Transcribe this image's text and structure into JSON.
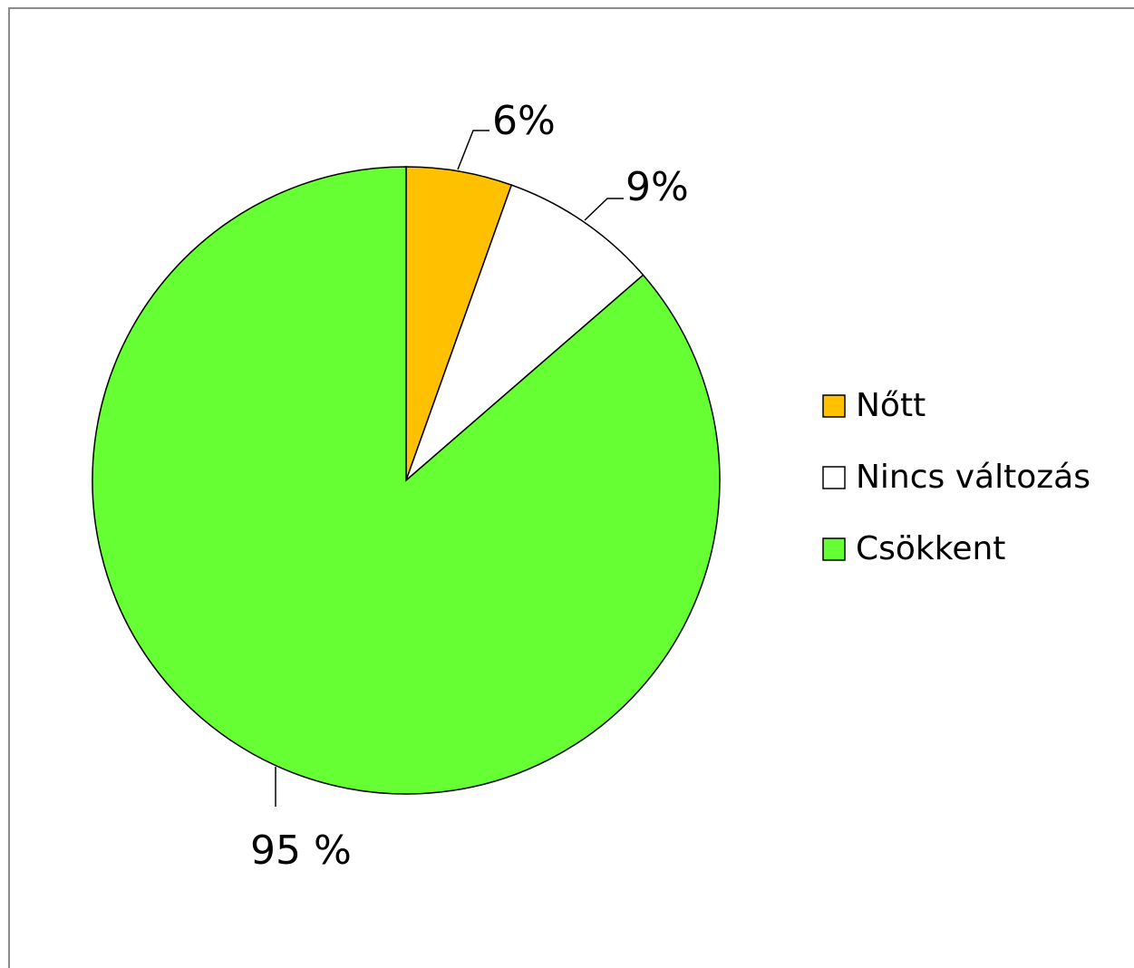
{
  "chart_data": {
    "type": "pie",
    "title": "",
    "categories": [
      "Nőtt",
      "Nincs változás",
      "Csökkent"
    ],
    "values": [
      6,
      9,
      95
    ],
    "data_labels": [
      "6%",
      "9%",
      "95 %"
    ],
    "colors": [
      "#ffc000",
      "#ffffff",
      "#66ff33"
    ],
    "start_angle_deg": 0,
    "direction": "clockwise",
    "legend": {
      "placement": "right",
      "entries": [
        "Nőtt",
        "Nincs változás",
        "Csökkent"
      ]
    }
  }
}
